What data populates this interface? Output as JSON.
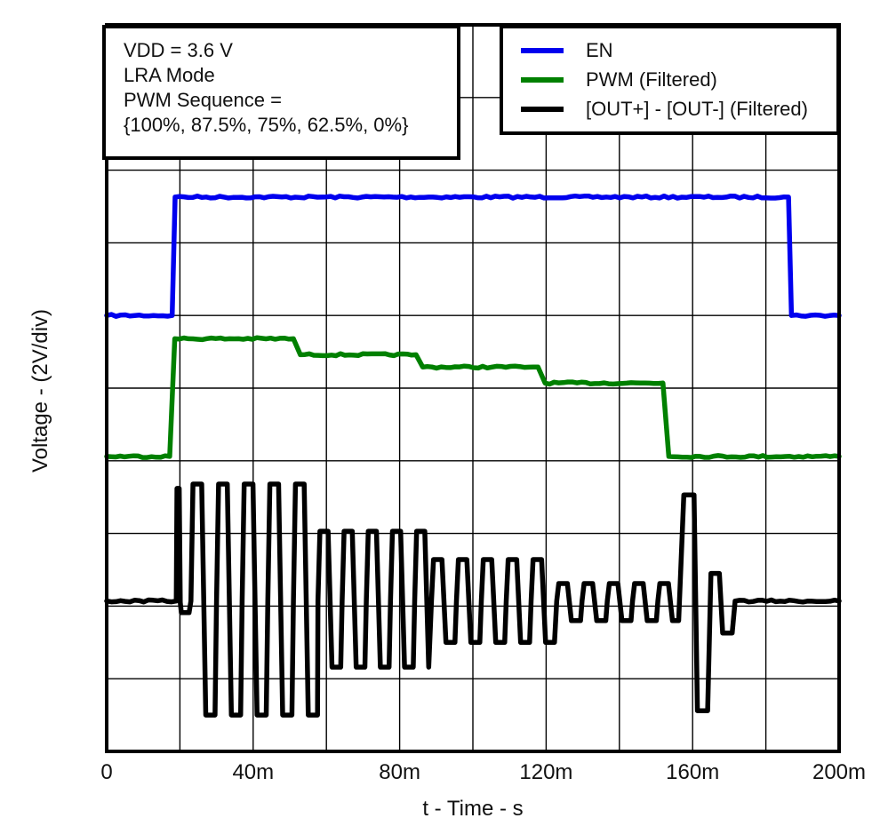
{
  "chart_data": {
    "type": "line",
    "title": "",
    "xlabel": "t - Time - s",
    "ylabel": "Voltage - (2V/div)",
    "x_range_ms": [
      0,
      200
    ],
    "x_divisions": 10,
    "y_divisions": 10,
    "volts_per_div": 2,
    "grid": true,
    "legend_position": "top-right",
    "y_units": "grid_div_from_top",
    "annotation_lines": [
      "VDD = 3.6 V",
      "LRA Mode",
      "PWM Sequence =",
      "{100%, 87.5%, 75%, 62.5%, 0%}"
    ],
    "x_ticks": [
      {
        "ms": 0,
        "label": "0"
      },
      {
        "ms": 40,
        "label": "40m"
      },
      {
        "ms": 80,
        "label": "80m"
      },
      {
        "ms": 120,
        "label": "120m"
      },
      {
        "ms": 160,
        "label": "160m"
      },
      {
        "ms": 200,
        "label": "200m"
      }
    ],
    "series": [
      {
        "name": "EN",
        "color": "#0000ee",
        "kind": "polyline",
        "points_t_div": [
          [
            0,
            4.0
          ],
          [
            17.9,
            4.0
          ],
          [
            18.7,
            2.37
          ],
          [
            186.2,
            2.37
          ],
          [
            187.0,
            4.0
          ],
          [
            200,
            4.0
          ]
        ],
        "description": "EN enable signal: low until 18 ms, high (3.6 V) until 186 ms, then low"
      },
      {
        "name": "PWM (Filtered)",
        "color": "#008000",
        "kind": "polyline",
        "duty_levels": [
          "100%",
          "87.5%",
          "75%",
          "62.5%",
          "0%"
        ],
        "points_t_div": [
          [
            0,
            5.94
          ],
          [
            17.2,
            5.94
          ],
          [
            18.6,
            4.32
          ],
          [
            51.0,
            4.32
          ],
          [
            52.9,
            4.54
          ],
          [
            84.5,
            4.54
          ],
          [
            86.3,
            4.71
          ],
          [
            117.8,
            4.71
          ],
          [
            119.7,
            4.93
          ],
          [
            151.9,
            4.93
          ],
          [
            153.5,
            5.94
          ],
          [
            200,
            5.94
          ]
        ],
        "description": "Filtered PWM stepping down 100% / 87.5% / 75% / 62.5% then 0% about every 33 ms"
      },
      {
        "name": "[OUT+] - [OUT-] (Filtered)",
        "color": "#000000",
        "kind": "lra-drive",
        "zero_div": 7.93,
        "pre_points_t_div": [
          [
            0,
            7.93
          ],
          [
            19.0,
            7.93
          ],
          [
            19.2,
            6.38
          ],
          [
            19.8,
            6.38
          ],
          [
            20.1,
            7.95
          ],
          [
            20.4,
            8.09
          ],
          [
            22.5,
            8.09
          ],
          [
            23.0,
            7.93
          ]
        ],
        "bursts": [
          {
            "t0": 23.0,
            "t1": 57.7,
            "peak_div": 6.32,
            "trough_div": 9.5,
            "period_ms": 7.0
          },
          {
            "t0": 57.7,
            "t1": 88.7,
            "peak_div": 6.97,
            "trough_div": 8.84,
            "period_ms": 6.6
          },
          {
            "t0": 88.7,
            "t1": 122.9,
            "peak_div": 7.36,
            "trough_div": 8.5,
            "period_ms": 6.8
          },
          {
            "t0": 122.9,
            "t1": 155.8,
            "peak_div": 7.69,
            "trough_div": 8.2,
            "period_ms": 6.9
          }
        ],
        "brake_points_t_div": [
          [
            156.2,
            8.2
          ],
          [
            157.6,
            6.47
          ],
          [
            160.4,
            6.47
          ],
          [
            161.3,
            9.44
          ],
          [
            164.1,
            9.44
          ],
          [
            165.0,
            7.55
          ],
          [
            167.3,
            7.55
          ],
          [
            168.2,
            8.37
          ],
          [
            170.8,
            8.37
          ],
          [
            171.6,
            7.93
          ],
          [
            200,
            7.93
          ]
        ],
        "description": "LRA differential drive: ~145 Hz square bursts with stepped amplitude, then braking pulse near 158 ms"
      }
    ]
  }
}
